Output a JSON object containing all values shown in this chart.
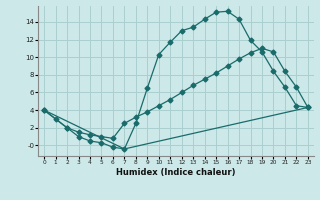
{
  "xlabel": "Humidex (Indice chaleur)",
  "bg_color": "#cce8e8",
  "grid_color": "#aacfcf",
  "line_color": "#1a6b6b",
  "line1_x": [
    0,
    1,
    2,
    3,
    4,
    5,
    6,
    7,
    8,
    9,
    10,
    11,
    12,
    13,
    14,
    15,
    16,
    17,
    18,
    19,
    20,
    21,
    22,
    23
  ],
  "line1_y": [
    4.0,
    3.0,
    2.0,
    1.0,
    0.5,
    0.3,
    -0.2,
    -0.4,
    2.5,
    6.5,
    10.3,
    11.7,
    13.0,
    13.4,
    14.3,
    15.1,
    15.2,
    14.3,
    11.9,
    10.6,
    8.4,
    6.6,
    4.5,
    4.3
  ],
  "line2_x": [
    0,
    2,
    3,
    4,
    5,
    6,
    7,
    8,
    9,
    10,
    11,
    12,
    13,
    14,
    15,
    16,
    17,
    18,
    19,
    20,
    21,
    22,
    23
  ],
  "line2_y": [
    4.0,
    2.0,
    1.5,
    1.2,
    1.0,
    0.8,
    2.5,
    3.2,
    3.8,
    4.5,
    5.2,
    6.0,
    6.8,
    7.5,
    8.2,
    9.0,
    9.8,
    10.5,
    11.0,
    10.6,
    8.4,
    6.6,
    4.3
  ],
  "line3_x": [
    0,
    7,
    23
  ],
  "line3_y": [
    4.0,
    -0.4,
    4.3
  ],
  "ylim": [
    -1.2,
    15.8
  ],
  "xlim": [
    -0.5,
    23.5
  ],
  "yticks": [
    0,
    2,
    4,
    6,
    8,
    10,
    12,
    14
  ],
  "ytick_labels": [
    "-0",
    "2",
    "4",
    "6",
    "8",
    "10",
    "12",
    "14"
  ],
  "xticks": [
    0,
    1,
    2,
    3,
    4,
    5,
    6,
    7,
    8,
    9,
    10,
    11,
    12,
    13,
    14,
    15,
    16,
    17,
    18,
    19,
    20,
    21,
    22,
    23
  ]
}
